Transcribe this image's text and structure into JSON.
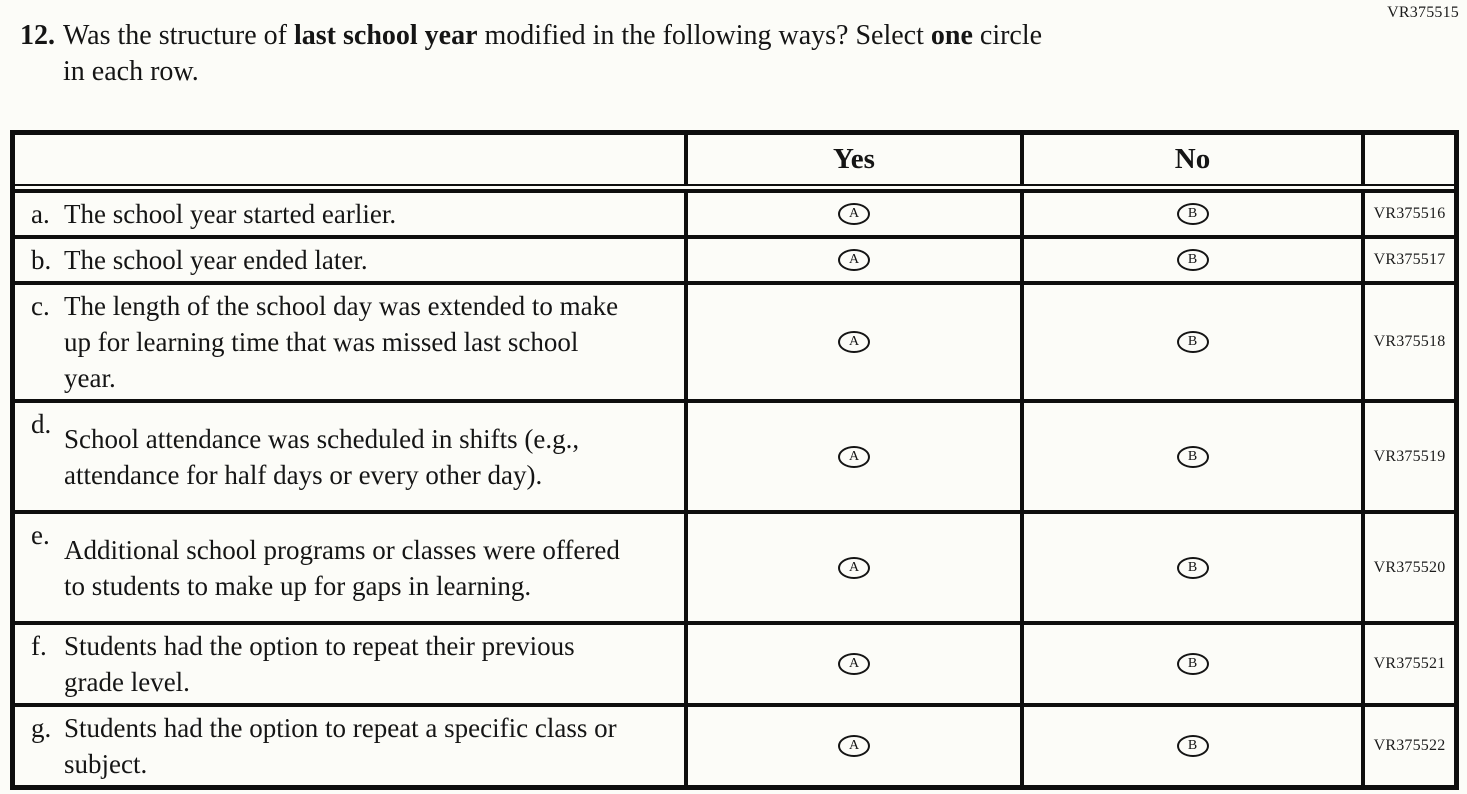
{
  "document": {
    "form_code_top": "VR375515",
    "question": {
      "number": "12.",
      "line1_seg1": "Was the structure of ",
      "line1_bold1": "last school year",
      "line1_seg2": " modified in the following ways? Select ",
      "line1_bold2": "one",
      "line1_seg3": " circle",
      "line2": "in each row."
    }
  },
  "table": {
    "header": {
      "yes": "Yes",
      "no": "No"
    },
    "bubbles": {
      "yes_letter": "A",
      "no_letter": "B"
    },
    "rows": [
      {
        "label": "a.",
        "text": "The school year started earlier.",
        "vr": "VR375516"
      },
      {
        "label": "b.",
        "text": "The school year ended later.",
        "vr": "VR375517"
      },
      {
        "label": "c.",
        "text": "The length of the school day was extended to make up for learning time that was missed last school year.",
        "vr": "VR375518"
      },
      {
        "label": "d.",
        "text": "School attendance was scheduled in shifts (e.g., attendance for half days or every other day).",
        "vr": "VR375519"
      },
      {
        "label": "e.",
        "text": "Additional school programs or classes were offered to students to make up for gaps in learning.",
        "vr": "VR375520"
      },
      {
        "label": "f.",
        "text": "Students had the option to repeat their previous grade level.",
        "vr": "VR375521"
      },
      {
        "label": "g.",
        "text": "Students had the option to repeat a specific class or subject.",
        "vr": "VR375522"
      }
    ]
  },
  "colors": {
    "ink": "#151515",
    "paper": "#fcfcf8",
    "border": "#0e0e0e"
  }
}
